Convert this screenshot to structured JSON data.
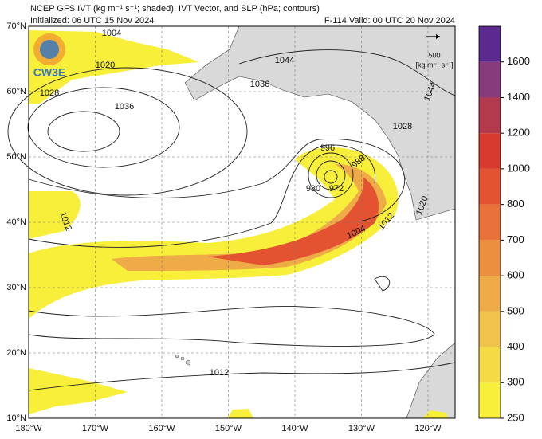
{
  "header": {
    "title": "NCEP GFS IVT (kg m⁻¹ s⁻¹; shaded), IVT Vector, and SLP (hPa; contours)",
    "initialized": "Initialized: 06 UTC 15 Nov 2024",
    "forecast": "F-114  Valid: 00 UTC 20 Nov 2024"
  },
  "logo": "CW3E",
  "vector_legend": {
    "value": "500",
    "units": "[kg m⁻¹ s⁻¹]"
  },
  "lat_labels": [
    "70°N",
    "60°N",
    "50°N",
    "40°N",
    "30°N",
    "20°N",
    "10°N"
  ],
  "lon_labels": [
    "180°W",
    "170°W",
    "160°W",
    "150°W",
    "140°W",
    "130°W",
    "120°W"
  ],
  "contour_labels": [
    "1004",
    "1020",
    "1028",
    "1036",
    "1044",
    "1036",
    "1028",
    "1044",
    "996",
    "988",
    "980",
    "972",
    "1004",
    "1012",
    "1020",
    "1012",
    "1012"
  ],
  "colorbar": {
    "ticks": [
      250,
      300,
      400,
      500,
      600,
      700,
      800,
      1000,
      1200,
      1400,
      1600
    ],
    "colors": [
      "#f8ef3b",
      "#f4da45",
      "#f0c44b",
      "#eeab47",
      "#ec8f3f",
      "#e8723a",
      "#e35332",
      "#d83b2d",
      "#b23a4c",
      "#873a7c",
      "#5a2a8f"
    ]
  }
}
